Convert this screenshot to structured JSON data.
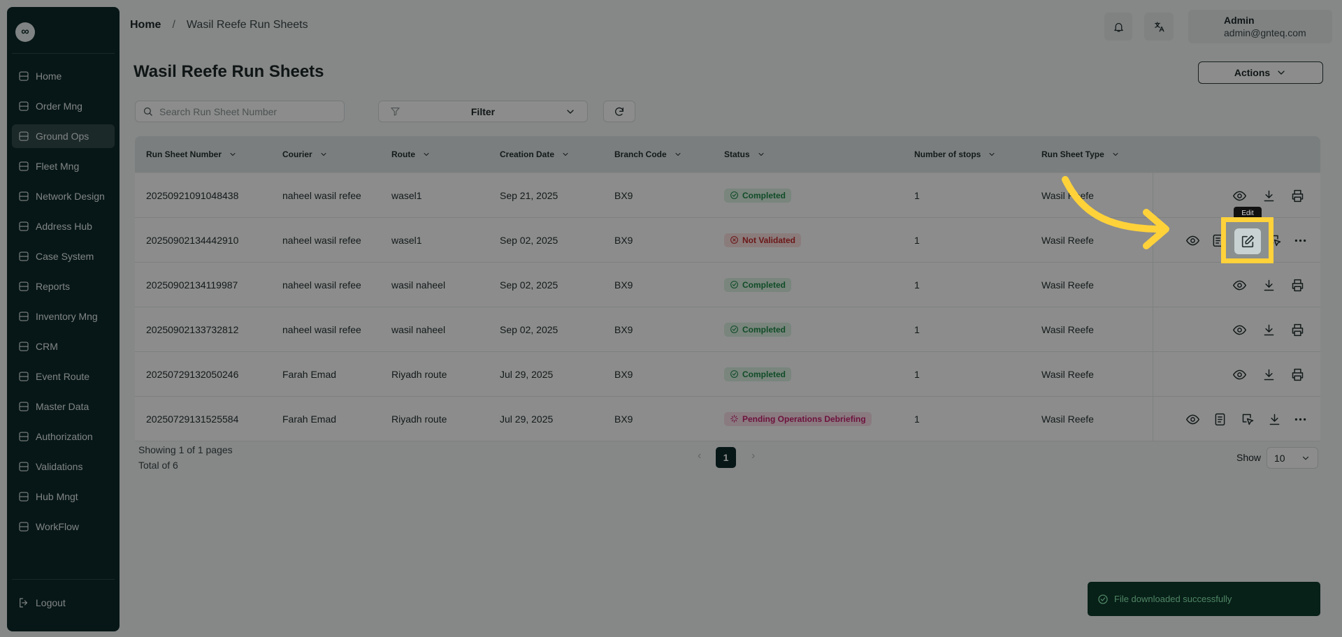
{
  "sidebar": {
    "items": [
      "Home",
      "Order Mng",
      "Ground Ops",
      "Fleet Mng",
      "Network Design",
      "Address Hub",
      "Case System",
      "Reports",
      "Inventory Mng",
      "CRM",
      "Event Route",
      "Master Data",
      "Authorization",
      "Validations",
      "Hub Mngt",
      "WorkFlow"
    ],
    "logout": "Logout"
  },
  "breadcrumb": [
    "Home",
    "/",
    "Wasil Reefe Run Sheets"
  ],
  "user": {
    "name": "Admin",
    "email": "admin@gnteq.com"
  },
  "page_title": "Wasil Reefe Run Sheets",
  "actions_button": "Actions",
  "search_placeholder": "Search Run Sheet Number",
  "filter": "Filter",
  "table": {
    "columns": [
      "Run Sheet Number",
      "Courier",
      "Route",
      "Creation Date",
      "Branch Code",
      "Status",
      "Number of stops",
      "Run Sheet Type"
    ],
    "rows": [
      [
        "20250921091048438",
        "naheel wasil refee",
        "wasel1",
        "Sep 21, 2025",
        "BX9",
        "Completed",
        "1",
        "Wasil Reefe"
      ],
      [
        "20250902134442910",
        "naheel wasil refee",
        "wasel1",
        "Sep 02, 2025",
        "BX9",
        "Not Validated",
        "1",
        "Wasil Reefe"
      ],
      [
        "20250902134119987",
        "naheel wasil refee",
        "wasil naheel",
        "Sep 02, 2025",
        "BX9",
        "Completed",
        "1",
        "Wasil Reefe"
      ],
      [
        "20250902133732812",
        "naheel wasil refee",
        "wasil naheel",
        "Sep 02, 2025",
        "BX9",
        "Completed",
        "1",
        "Wasil Reefe"
      ],
      [
        "20250729132050246",
        "Farah Emad",
        "Riyadh route",
        "Jul 29, 2025",
        "BX9",
        "Completed",
        "1",
        "Wasil Reefe"
      ],
      [
        "20250729131525584",
        "Farah Emad",
        "Riyadh route",
        "Jul 29, 2025",
        "BX9",
        "Pending Operations Debriefing",
        "1",
        "Wasil Reefe"
      ]
    ]
  },
  "pagination": {
    "showing": "Showing 1 of 1 pages",
    "total": "Total of 6",
    "page": "1",
    "show_label": "Show",
    "page_size": "10"
  },
  "tooltip": "Edit",
  "toast": "File downloaded successfully"
}
